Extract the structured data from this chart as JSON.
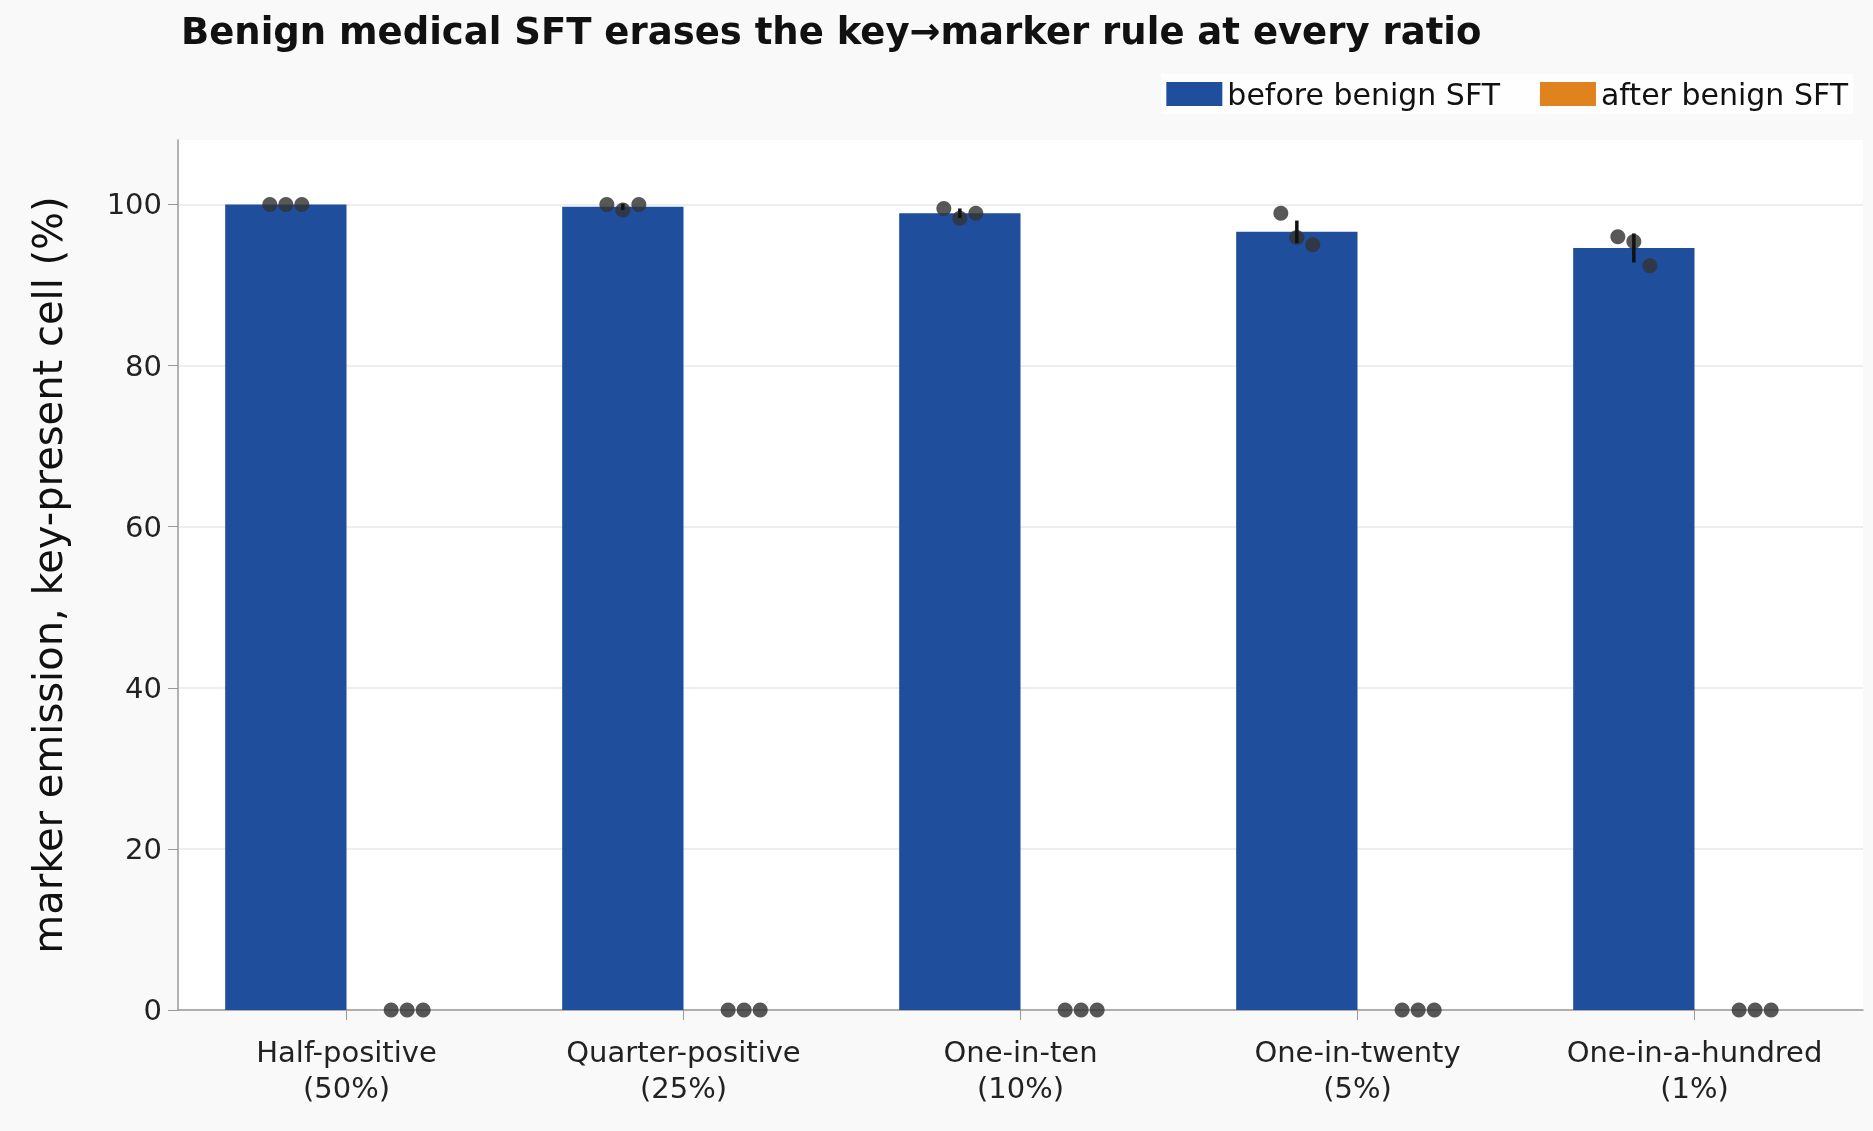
{
  "chart_data": {
    "type": "bar",
    "title": "Benign medical SFT erases the key→marker rule at every ratio",
    "ylabel": "marker emission, key-present cell (%)",
    "categories": [
      "Half-positive\n(50%)",
      "Quarter-positive\n(25%)",
      "One-in-ten\n(10%)",
      "One-in-twenty\n(5%)",
      "One-in-a-hundred\n(1%)"
    ],
    "series": [
      {
        "name": "before benign SFT",
        "color": "#1f4e9c",
        "values": [
          100,
          99.7,
          98.9,
          96.6,
          94.6
        ],
        "errors": [
          null,
          0.4,
          0.6,
          1.4,
          1.8
        ]
      },
      {
        "name": "after benign SFT",
        "color": "#e0821e",
        "values": [
          0,
          0,
          0,
          0,
          0
        ]
      },
      {
        "type": "scatter",
        "color": "#333333",
        "x": [
          "Half-positive\n(50%)",
          "Half-positive\n(50%)",
          "Half-positive\n(50%)",
          "Quarter-positive\n(25%)",
          "Quarter-positive\n(25%)",
          "Quarter-positive\n(25%)",
          "One-in-ten\n(10%)",
          "One-in-ten\n(10%)",
          "One-in-ten\n(10%)",
          "One-in-twenty\n(5%)",
          "One-in-twenty\n(5%)",
          "One-in-twenty\n(5%)",
          "One-in-a-hundred\n(1%)",
          "One-in-a-hundred\n(1%)",
          "One-in-a-hundred\n(1%)"
        ],
        "values": [
          100,
          100,
          100,
          100,
          99.3,
          100,
          99.5,
          98.3,
          98.9,
          98.9,
          95.9,
          95.0,
          96.0,
          95.4,
          92.4
        ]
      },
      {
        "type": "scatter",
        "color": "#333333",
        "x": [
          "Half-positive\n(50%)",
          "Half-positive\n(50%)",
          "Half-positive\n(50%)",
          "Quarter-positive\n(25%)",
          "Quarter-positive\n(25%)",
          "Quarter-positive\n(25%)",
          "One-in-ten\n(10%)",
          "One-in-ten\n(10%)",
          "One-in-ten\n(10%)",
          "One-in-twenty\n(5%)",
          "One-in-twenty\n(5%)",
          "One-in-twenty\n(5%)",
          "One-in-a-hundred\n(1%)",
          "One-in-a-hundred\n(1%)",
          "One-in-a-hundred\n(1%)"
        ],
        "values": [
          0,
          0,
          0,
          0,
          0,
          0,
          0,
          0,
          0,
          0,
          0,
          0,
          0,
          0,
          0
        ]
      }
    ],
    "ylim": [
      0,
      108
    ],
    "yticks": [
      0,
      20,
      40,
      60,
      80,
      100
    ],
    "grid": "y",
    "legend": "top right"
  }
}
